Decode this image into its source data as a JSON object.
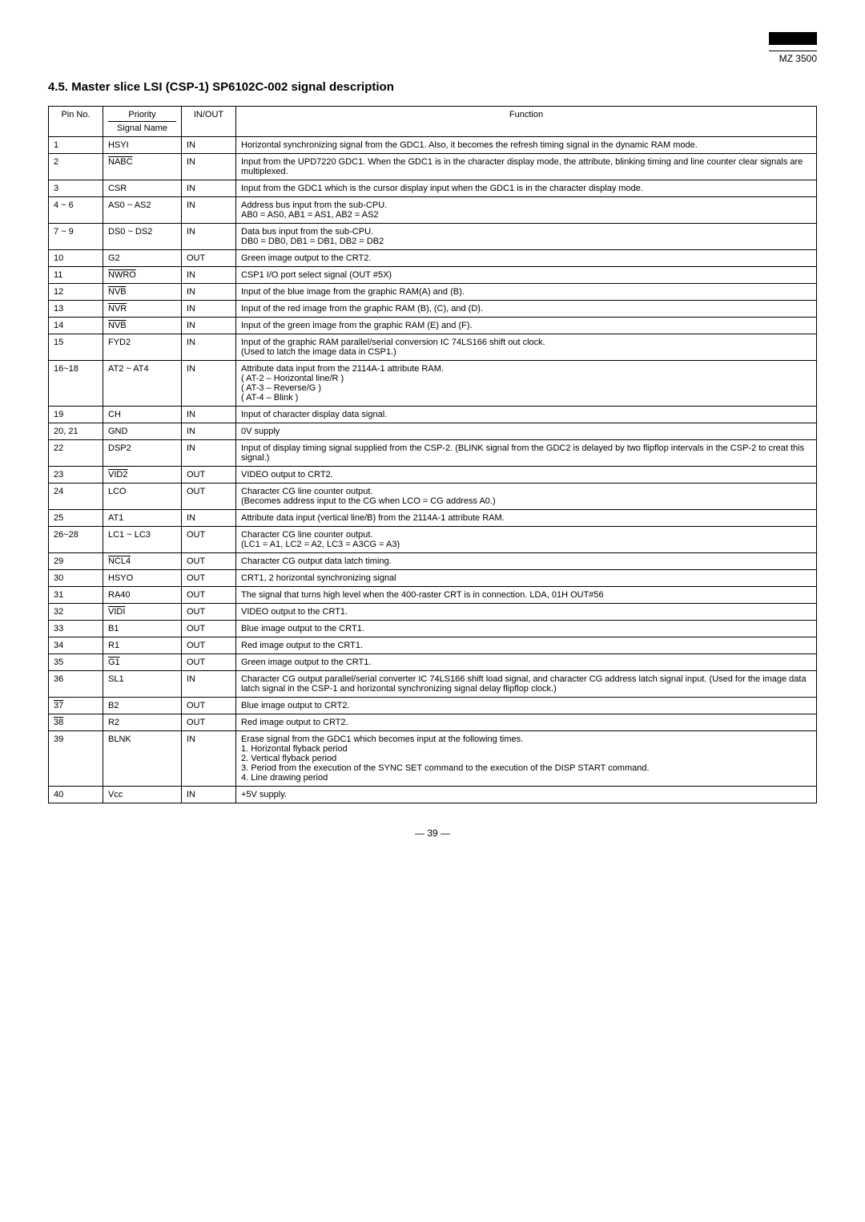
{
  "logo": {
    "model": "MZ 3500"
  },
  "section": {
    "number": "4.5.",
    "title": "Master slice LSI (CSP-1) SP6102C-002 signal description"
  },
  "table": {
    "headers": {
      "pin": "Pin No.",
      "priority": "Priority",
      "signal": "Signal Name",
      "io": "IN/OUT",
      "func": "Function"
    },
    "rows": [
      {
        "pin": "1",
        "sig": "HSYI",
        "io": "IN",
        "func": "Horizontal synchronizing signal from the GDC1. Also, it becomes the refresh timing signal in the dynamic RAM mode."
      },
      {
        "pin": "2",
        "sig": "NABC",
        "overline": true,
        "io": "IN",
        "func": "Input from the UPD7220 GDC1. When the GDC1 is in the character display mode, the attribute, blinking timing and line counter clear signals are multiplexed."
      },
      {
        "pin": "3",
        "sig": "CSR",
        "io": "IN",
        "func": "Input from the GDC1 which is the cursor display input when the GDC1 is in the character display mode."
      },
      {
        "pin": "4 ~ 6",
        "sig": "AS0 ~ AS2",
        "io": "IN",
        "func": "Address bus input from the sub-CPU.\n    AB0 = AS0, AB1 = AS1, AB2 = AS2"
      },
      {
        "pin": "7 ~ 9",
        "sig": "DS0 ~ DS2",
        "io": "IN",
        "func": "Data bus input from the sub-CPU.\n    DB0 = DB0, DB1 = DB1, DB2 = DB2"
      },
      {
        "pin": "10",
        "sig": "G2",
        "io": "OUT",
        "func": "Green image output to the CRT2."
      },
      {
        "pin": "11",
        "sig": "NWRO",
        "overline": true,
        "io": "IN",
        "func": "CSP1 I/O port select signal (OUT #5X)"
      },
      {
        "pin": "12",
        "sig": "NVB",
        "overline": true,
        "io": "IN",
        "func": "Input of the blue image from the graphic RAM(A) and (B)."
      },
      {
        "pin": "13",
        "sig": "NVR",
        "overline": true,
        "io": "IN",
        "func": "Input of the red image from the graphic RAM (B), (C), and (D)."
      },
      {
        "pin": "14",
        "sig": "NVB",
        "overline": true,
        "io": "IN",
        "func": "Input of the green image from the graphic RAM (E) and (F)."
      },
      {
        "pin": "15",
        "sig": "FYD2",
        "io": "IN",
        "func": "Input of the graphic RAM parallel/serial conversion IC 74LS166 shift out clock.\n(Used to latch the image data in CSP1.)"
      },
      {
        "pin": "16~18",
        "sig": "AT2 ~ AT4",
        "io": "IN",
        "func": "Attribute data input from the 2114A-1 attribute RAM.\n  ( AT-2 – Horizontal line/R )\n  ( AT-3 – Reverse/G )\n  ( AT-4 – Blink )"
      },
      {
        "pin": "19",
        "sig": "CH",
        "io": "IN",
        "func": "Input of character display data signal."
      },
      {
        "pin": "20, 21",
        "sig": "GND",
        "io": "IN",
        "func": "0V supply"
      },
      {
        "pin": "22",
        "sig": "DSP2",
        "io": "IN",
        "func": "Input of display timing signal supplied from the CSP-2. (BLINK signal from the GDC2 is delayed by two flipflop intervals in the CSP-2 to creat this signal.)"
      },
      {
        "pin": "23",
        "sig": "VID2",
        "overline": true,
        "io": "OUT",
        "func": "VIDEO output to CRT2."
      },
      {
        "pin": "24",
        "sig": "LCO",
        "io": "OUT",
        "func": "Character CG line counter output.\n(Becomes address input to the CG when LCO = CG address A0.)"
      },
      {
        "pin": "25",
        "sig": "AT1",
        "io": "IN",
        "func": "Attribute data input (vertical line/B) from the 2114A-1 attribute RAM."
      },
      {
        "pin": "26~28",
        "sig": "LC1 ~ LC3",
        "io": "OUT",
        "func": "Character CG line counter output.\n(LC1 = A1, LC2 = A2, LC3 = A3CG = A3)"
      },
      {
        "pin": "29",
        "sig": "NCL4",
        "overline": true,
        "io": "OUT",
        "func": "Character CG output data latch timing."
      },
      {
        "pin": "30",
        "sig": "HSYO",
        "io": "OUT",
        "func": "CRT1, 2 horizontal synchronizing signal"
      },
      {
        "pin": "31",
        "sig": "RA40",
        "io": "OUT",
        "func": "The signal that turns high level when the 400-raster CRT is in connection. LDA, 01H OUT#56"
      },
      {
        "pin": "32",
        "sig": "VIDI",
        "overline": true,
        "io": "OUT",
        "func": "VIDEO output to the CRT1."
      },
      {
        "pin": "33",
        "sig": "B1",
        "io": "OUT",
        "func": "Blue image output to the CRT1."
      },
      {
        "pin": "34",
        "sig": "R1",
        "io": "OUT",
        "func": "Red image output to the CRT1."
      },
      {
        "pin": "35",
        "sig": "G1",
        "overline": true,
        "io": "OUT",
        "func": "Green image output to the CRT1."
      },
      {
        "pin": "36",
        "sig": "SL1",
        "io": "IN",
        "func": "Character CG output parallel/serial converter IC 74LS166 shift load signal, and character CG address latch signal input. (Used for the image data latch signal in the CSP-1 and horizontal synchronizing signal delay flipflop clock.)"
      },
      {
        "pin": "37",
        "sig": "B2",
        "overline_pin": true,
        "io": "OUT",
        "func": "Blue image output to CRT2."
      },
      {
        "pin": "38",
        "sig": "R2",
        "overline_pin": true,
        "io": "OUT",
        "func": "Red image output to CRT2."
      },
      {
        "pin": "39",
        "sig": "BLNK",
        "io": "IN",
        "func": "Erase signal from the GDC1 which becomes input at the following times.\n1. Horizontal flyback period\n2. Vertical flyback period\n3. Period from the execution of the SYNC SET command to the execution of the DISP START command.\n4. Line drawing period"
      },
      {
        "pin": "40",
        "sig": "Vcc",
        "io": "IN",
        "func": "+5V supply."
      }
    ]
  },
  "page_number": "— 39 —"
}
